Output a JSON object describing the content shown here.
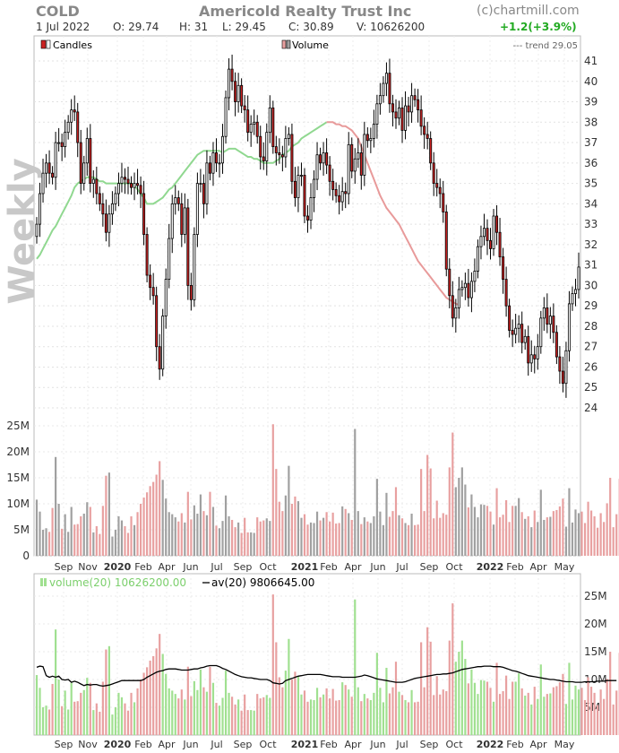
{
  "header": {
    "ticker": "COLD",
    "company": "Americold Realty Trust Inc",
    "date": "1 Jul 2022",
    "open": "O: 29.74",
    "high": "H: 31",
    "low": "L: 29.45",
    "close": "C: 30.89",
    "volume": "V: 10626200",
    "change": "+1.2(+3.9%)",
    "credit": "(c)chartmill.com",
    "watermark": "Weekly"
  },
  "colors": {
    "up": "#ffffff",
    "down": "#cc2222",
    "sma": "#90d890",
    "trend": "#e89a9a",
    "vol_up": "#a0e090",
    "vol_down": "#e8a0a0",
    "vol_neutral": "#a0a0a0",
    "avg_line": "#000000",
    "change": "#22aa22"
  },
  "price_panel": {
    "legend_candles": "Candles",
    "legend_volume": "Volume",
    "legend_trend": "--- trend 29.05",
    "y_ticks": [
      "41",
      "40",
      "39",
      "38",
      "37",
      "36",
      "35",
      "34",
      "33",
      "32",
      "31",
      "30",
      "29",
      "28",
      "27",
      "26",
      "25",
      "24"
    ],
    "vol_ticks": [
      "25M",
      "20M",
      "15M",
      "10M",
      "5M",
      "0"
    ]
  },
  "volume_panel": {
    "legend_volume": "volume(20) 10626200.00",
    "legend_avg": "av(20) 9806645.00",
    "y_ticks": [
      "25M",
      "20M",
      "15M",
      "10M",
      "5M"
    ]
  },
  "x_axis": [
    "Sep",
    "Nov",
    "2020",
    "Feb",
    "Apr",
    "Jun",
    "Jul",
    "Sep",
    "Oct",
    "2021",
    "Feb",
    "Apr",
    "Jun",
    "Jul",
    "Sep",
    "Oct",
    "2022",
    "Feb",
    "Apr",
    "May"
  ],
  "chart_data": [
    {
      "type": "candlestick",
      "title": "Americold Realty Trust Inc",
      "ticker": "COLD",
      "period": "Weekly",
      "ylim": [
        24,
        41
      ],
      "series": [
        {
          "name": "Candles",
          "close": [
            33,
            34.5,
            35.5,
            36,
            35.5,
            35.3,
            37,
            37,
            36.8,
            37.5,
            38,
            38.6,
            38.5,
            37,
            35,
            36,
            37.2,
            35,
            35.2,
            34.5,
            34,
            33.5,
            32.6,
            33.5,
            34,
            34.5,
            35,
            35.3,
            35.2,
            35,
            34.8,
            35,
            34.9,
            34.5,
            32.5,
            30.5,
            29.9,
            29.5,
            27,
            25.9,
            28.5,
            30.3,
            32.3,
            34,
            34.3,
            34,
            32.5,
            33.8,
            30,
            29.3,
            32.5,
            35,
            35,
            34,
            36,
            35.5,
            36.5,
            36,
            36,
            37.3,
            39.2,
            40.6,
            40,
            39,
            39.8,
            38.8,
            38.6,
            37.5,
            37.9,
            38,
            37.3,
            36.3,
            36.1,
            37.5,
            38.7,
            36.8,
            36.5,
            36.4,
            36.3,
            37.2,
            37.4,
            35.1,
            34.3,
            35.4,
            35.4,
            33.4,
            33.2,
            34.3,
            35.2,
            36.4,
            36,
            36.5,
            35.9,
            35.1,
            34.7,
            34.4,
            34.1,
            34.6,
            34.5,
            36.9,
            35.6,
            36.2,
            36.5,
            35.4,
            37.4,
            37.1,
            37.2,
            37.9,
            38.9,
            39.3,
            39.9,
            40.4,
            38.9,
            38.5,
            38.2,
            38.7,
            37.6,
            38.8,
            38.5,
            39.3,
            39.1,
            38.6,
            37.8,
            37.4,
            37.2,
            36,
            35,
            34.8,
            34.5,
            33.6,
            30.8,
            29.5,
            28.4,
            28.9,
            29.8,
            29.9,
            30.1,
            29.4,
            30.2,
            30.7,
            31.9,
            32.4,
            32.8,
            32.2,
            31.8,
            33.4,
            32.6,
            31.4,
            30.3,
            29,
            27.8,
            27.6,
            27.9,
            28.1,
            27.2,
            27.5,
            26.2,
            26.6,
            26.4,
            27,
            28.4,
            28.9,
            28.1,
            28.5,
            27.7,
            26.5,
            25.8,
            25.2,
            26.8,
            29.1,
            29.6,
            29.8,
            30.9
          ]
        },
        {
          "name": "trend",
          "values": [
            31.3,
            31.5,
            31.8,
            32.1,
            32.4,
            32.7,
            32.9,
            33.2,
            33.5,
            33.8,
            34.1,
            34.4,
            34.8,
            35,
            35.1,
            35.2,
            35.3,
            35.3,
            35.3,
            35.2,
            35.1,
            35.1,
            35,
            35,
            35,
            35,
            35,
            35,
            35,
            35,
            35,
            34.9,
            34.7,
            34.5,
            34.3,
            34,
            34,
            34,
            34.1,
            34.2,
            34.3,
            34.5,
            34.7,
            34.8,
            35,
            35.2,
            35.4,
            35.6,
            35.8,
            36,
            36.2,
            36.4,
            36.5,
            36.6,
            36.6,
            36.6,
            36.6,
            36.6,
            36.6,
            36.5,
            36.6,
            36.7,
            36.7,
            36.7,
            36.6,
            36.5,
            36.4,
            36.3,
            36.3,
            36.2,
            36.2,
            36.1,
            36,
            36,
            36,
            36,
            36.1,
            36.2,
            36.4,
            36.5,
            36.6,
            36.8,
            36.9,
            37,
            37.2,
            37.3,
            37.4,
            37.5,
            37.6,
            37.7,
            37.8,
            37.9,
            38,
            38,
            38,
            37.9,
            37.9,
            37.8,
            37.8,
            37.7,
            37.6,
            37.4,
            37.2,
            36.8,
            36.4,
            36,
            35.6,
            35.2,
            34.8,
            34.4,
            34.1,
            33.8,
            33.6,
            33.4,
            33.2,
            33,
            32.7,
            32.4,
            32.1,
            31.8,
            31.5,
            31.2,
            31,
            30.8,
            30.6,
            30.4,
            30.2,
            30,
            29.8,
            29.6,
            29.4,
            29.3,
            29.2,
            29.1,
            29.05
          ]
        }
      ],
      "last": {
        "open": 29.74,
        "high": 31,
        "low": 29.45,
        "close": 30.89,
        "volume": 10626200,
        "change": 1.2,
        "change_pct": 3.9
      }
    },
    {
      "type": "bar",
      "title": "Volume",
      "ylim": [
        0,
        27000000
      ],
      "y_ticks": [
        "25M",
        "20M",
        "15M",
        "10M",
        "5M",
        "0"
      ],
      "series": [
        {
          "name": "volume(20)",
          "last": 10626200,
          "values": [
            10.8,
            8.5,
            5,
            5.3,
            4.6,
            9.2,
            19,
            10,
            5.2,
            8,
            4.6,
            9.4,
            6,
            6.1,
            7.6,
            8.1,
            10.3,
            9.4,
            4.5,
            5.7,
            4.2,
            9.6,
            15.4,
            16,
            3.7,
            5,
            7.6,
            6.8,
            5.7,
            4.4,
            7.6,
            5.9,
            8.4,
            10,
            11.2,
            12.2,
            13.4,
            14.2,
            15.6,
            18.2,
            14.6,
            11,
            8.4,
            8,
            7.4,
            6.6,
            8.2,
            6.4,
            12.3,
            7,
            9.7,
            8.1,
            11.8,
            8.6,
            7.8,
            12.3,
            9.4,
            5.8,
            5.3,
            6.7,
            11.6,
            7.6,
            6.9,
            5.5,
            6.4,
            4.4,
            7.3,
            4.5,
            4.5,
            4.4,
            7.4,
            6.6,
            6.8,
            7.2,
            6.7,
            25.3,
            16.7,
            10.4,
            8.6,
            11.6,
            17.3,
            10,
            11.4,
            10.5,
            7.3,
            8,
            6,
            6.4,
            6.3,
            8.5,
            6.8,
            7.3,
            8.4,
            6.6,
            8.3,
            6.2,
            6.3,
            9.5,
            9,
            8.2,
            6.9,
            24.4,
            8.6,
            6.1,
            7.4,
            6.6,
            6.3,
            7.6,
            14.8,
            8.5,
            5.9,
            12.1,
            7.5,
            8.6,
            13.2,
            7.8,
            7.2,
            6.3,
            5.9,
            8.1,
            5.9,
            6,
            16.7,
            8.6,
            19.4,
            16.8,
            7.2,
            10.6,
            7.3,
            8.2,
            7.9,
            17,
            23.7,
            13.2,
            15,
            17,
            13.7,
            9.3,
            11.8,
            9.4,
            7.4,
            9.9,
            9.8,
            9.6,
            8.5,
            6,
            13,
            7.4,
            7.9,
            10.7,
            6.5,
            9.6,
            9.6,
            11.1,
            8.4,
            7.1,
            7.6,
            5.5,
            8.7,
            6.5,
            12.7,
            6.9,
            7.4,
            7.5,
            8.6,
            8.8,
            9.5,
            11,
            5.6,
            13,
            6.4,
            8.9,
            8.2,
            8.5,
            6.3,
            10.4,
            8.7,
            7.6,
            5.4,
            8.2,
            6.5,
            10.1,
            15,
            5.5,
            8,
            14.8,
            12.3,
            10.6
          ]
        },
        {
          "name": "av(20)",
          "last": 9806645,
          "values": [
            12.2,
            12.4,
            12.3,
            10.7,
            10.4,
            10.6,
            10.4,
            10.6,
            10,
            9.9,
            10,
            9.5,
            9.7,
            9.5,
            9.2,
            8.9,
            9.1,
            9,
            9.1,
            9.1,
            8.9,
            8.8,
            8.9,
            9,
            9.2,
            9.4,
            9.6,
            9.8,
            9.8,
            9.8,
            9.8,
            9.8,
            9.8,
            9.8,
            10,
            10.4,
            10.7,
            11,
            11.3,
            11.5,
            11.6,
            11.8,
            11.9,
            11.9,
            11.9,
            11.8,
            11.7,
            11.7,
            11.7,
            11.8,
            11.9,
            11.9,
            12.1,
            12.2,
            12.4,
            12.5,
            12.5,
            12.5,
            12.3,
            12,
            11.8,
            11.5,
            11.2,
            10.9,
            10.7,
            10.5,
            10.4,
            10.3,
            10.3,
            10.2,
            10.1,
            10,
            10,
            10,
            9.8,
            9.4,
            9.3,
            9.2,
            9.3,
            9.8,
            10,
            10.2,
            10.4,
            10.6,
            10.7,
            10.8,
            10.9,
            10.9,
            10.9,
            10.9,
            10.9,
            10.8,
            10.7,
            10.6,
            10.5,
            10.5,
            10.5,
            10.4,
            10.4,
            10.4,
            10.4,
            10.4,
            10.5,
            10.6,
            10.8,
            10.7,
            10.5,
            10.3,
            10.1,
            10,
            9.9,
            9.8,
            9.7,
            9.6,
            9.5,
            9.5,
            9.5,
            9.6,
            9.8,
            10,
            10.2,
            10.3,
            10.4,
            10.5,
            10.6,
            10.7,
            10.8,
            10.9,
            10.9,
            11,
            11,
            11.1,
            11.2,
            11.4,
            11.6,
            11.8,
            11.9,
            12,
            12.1,
            12.2,
            12.3,
            12.3,
            12.4,
            12.4,
            12.4,
            12.3,
            12.3,
            12.3,
            12.2,
            12,
            11.8,
            11.6,
            11.5,
            11.3,
            11.1,
            10.9,
            10.7,
            10.6,
            10.5,
            10.4,
            10.3,
            10.2,
            10.1,
            10,
            10,
            9.9,
            9.8,
            9.7,
            9.6,
            9.6,
            9.6,
            9.5,
            9.5,
            9.5,
            9.6,
            9.6,
            9.6,
            9.6,
            9.7,
            9.7,
            9.7,
            9.8,
            9.8,
            9.8,
            9.8
          ]
        }
      ],
      "ylim_lower": [
        0,
        27000000
      ],
      "y_ticks_lower": [
        "25M",
        "20M",
        "15M",
        "10M",
        "5M"
      ]
    }
  ]
}
